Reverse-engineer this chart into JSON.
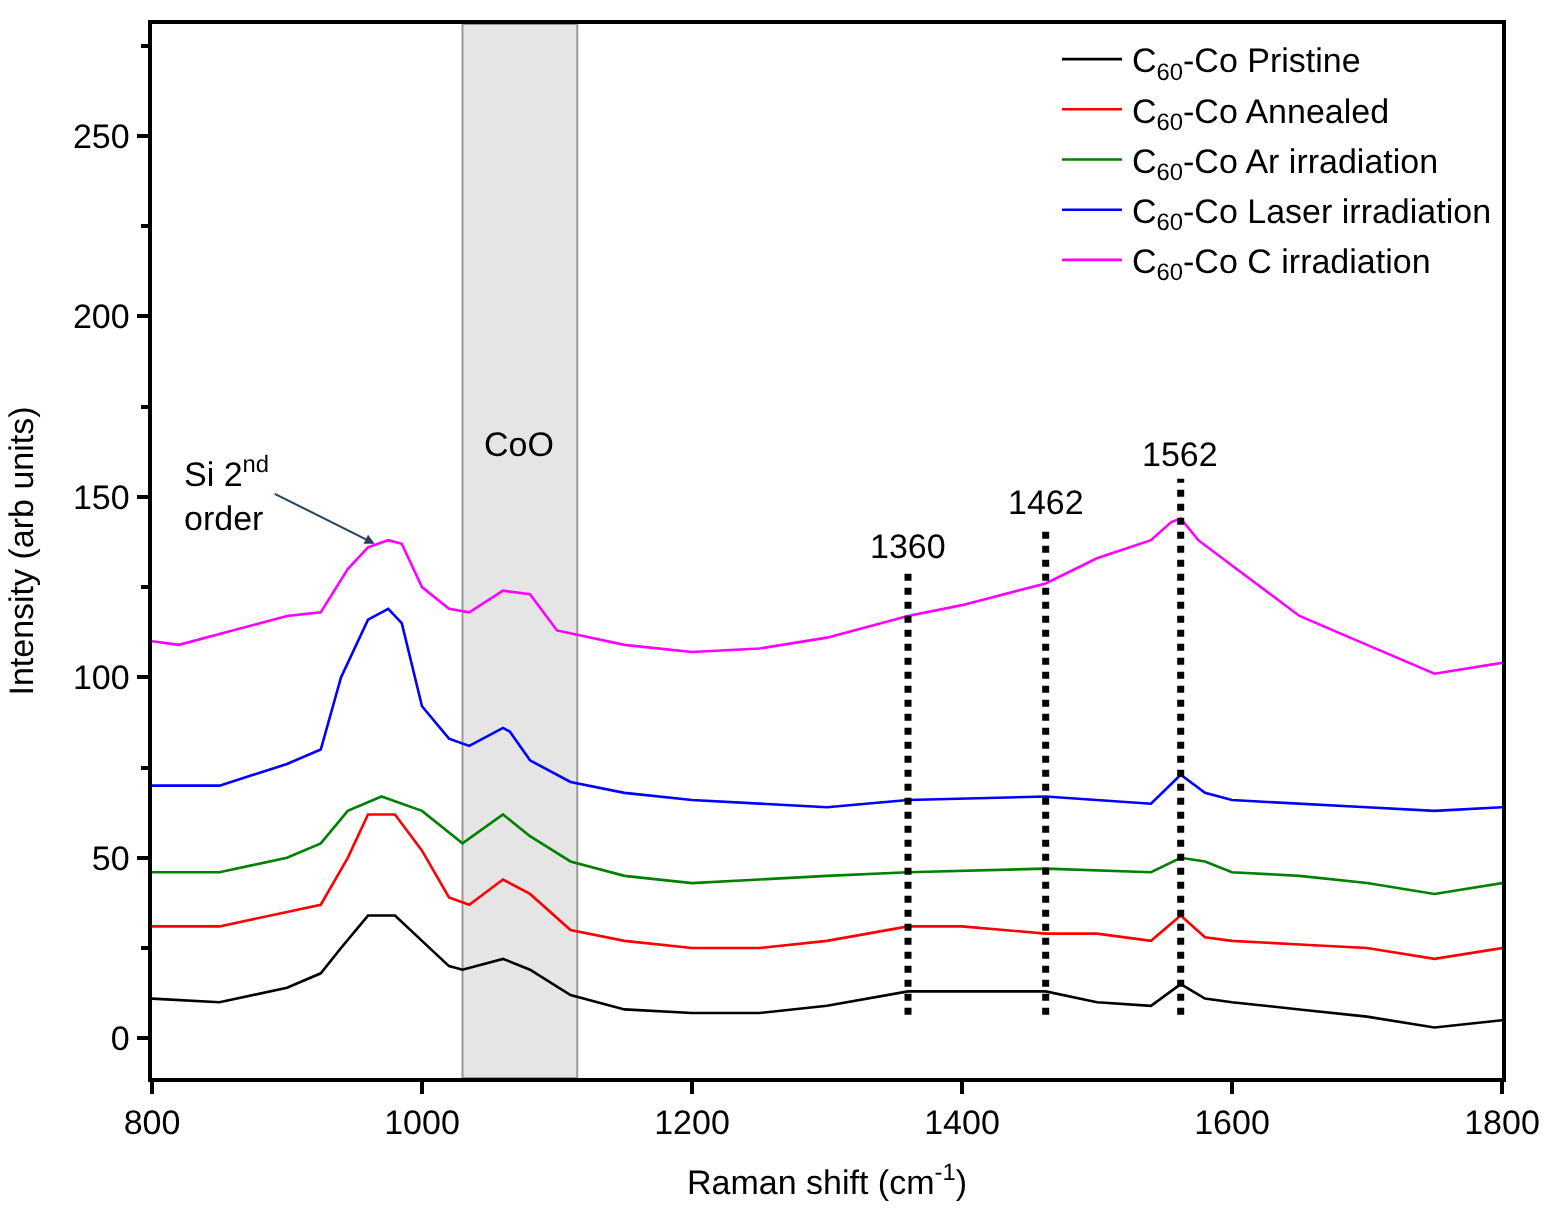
{
  "chart_data": {
    "type": "line",
    "xlabel": "Raman shift (cm$^{-1}$)",
    "ylabel": "Intensity (arb units)",
    "xlim": [
      800,
      1800
    ],
    "xticks": [
      800,
      1000,
      1200,
      1400,
      1600,
      1800
    ],
    "ylim": [
      -11,
      281
    ],
    "yticks": [
      0,
      50,
      100,
      150,
      200,
      250
    ],
    "grid": false,
    "legend": "top right",
    "marker": "none",
    "line_style": "solid",
    "series": [
      {
        "name": "C$_{60}$-Co Pristine",
        "color": "#000000",
        "x": [
          800,
          850,
          900,
          925,
          940,
          960,
          980,
          1000,
          1020,
          1030,
          1060,
          1080,
          1110,
          1150,
          1200,
          1250,
          1300,
          1360,
          1400,
          1462,
          1500,
          1540,
          1562,
          1580,
          1600,
          1650,
          1700,
          1750,
          1800
        ],
        "values": [
          11,
          10,
          14,
          18,
          25,
          34,
          34,
          27,
          20,
          19,
          22,
          19,
          12,
          8,
          7,
          7,
          9,
          13,
          13,
          13,
          10,
          9,
          15,
          11,
          10,
          8,
          6,
          3,
          5
        ]
      },
      {
        "name": "C$_{60}$-Co Annealed",
        "color": "#ff0000",
        "x": [
          800,
          850,
          900,
          925,
          945,
          960,
          980,
          1000,
          1020,
          1035,
          1060,
          1080,
          1110,
          1150,
          1200,
          1250,
          1300,
          1360,
          1400,
          1462,
          1500,
          1540,
          1562,
          1580,
          1600,
          1650,
          1700,
          1750,
          1800
        ],
        "values": [
          31,
          31,
          35,
          37,
          50,
          62,
          62,
          52,
          39,
          37,
          44,
          40,
          30,
          27,
          25,
          25,
          27,
          31,
          31,
          29,
          29,
          27,
          34,
          28,
          27,
          26,
          25,
          22,
          25
        ]
      },
      {
        "name": "C$_{60}$-Co Ar irradiation",
        "color": "#008000",
        "x": [
          800,
          850,
          900,
          925,
          945,
          970,
          1000,
          1030,
          1060,
          1080,
          1110,
          1150,
          1200,
          1300,
          1360,
          1462,
          1540,
          1562,
          1580,
          1600,
          1650,
          1700,
          1750,
          1800
        ],
        "values": [
          46,
          46,
          50,
          54,
          63,
          67,
          63,
          54,
          62,
          56,
          49,
          45,
          43,
          45,
          46,
          47,
          46,
          50,
          49,
          46,
          45,
          43,
          40,
          43
        ]
      },
      {
        "name": "C$_{60}$-Co Laser irradiation",
        "color": "#0000ff",
        "x": [
          800,
          850,
          900,
          925,
          940,
          960,
          975,
          985,
          1000,
          1020,
          1035,
          1060,
          1065,
          1080,
          1110,
          1150,
          1200,
          1300,
          1360,
          1462,
          1540,
          1562,
          1580,
          1600,
          1700,
          1750,
          1800
        ],
        "values": [
          70,
          70,
          76,
          80,
          100,
          116,
          119,
          115,
          92,
          83,
          81,
          86,
          85,
          77,
          71,
          68,
          66,
          64,
          66,
          67,
          65,
          73,
          68,
          66,
          64,
          63,
          64
        ]
      },
      {
        "name": "C$_{60}$-Co C irradiation",
        "color": "#ff00ff",
        "x": [
          800,
          820,
          850,
          900,
          925,
          945,
          960,
          975,
          985,
          1000,
          1020,
          1035,
          1060,
          1080,
          1100,
          1150,
          1200,
          1250,
          1300,
          1360,
          1400,
          1462,
          1500,
          1540,
          1555,
          1562,
          1575,
          1600,
          1650,
          1700,
          1750,
          1800
        ],
        "values": [
          110,
          109,
          112,
          117,
          118,
          130,
          136,
          138,
          137,
          125,
          119,
          118,
          124,
          123,
          113,
          109,
          107,
          108,
          111,
          117,
          120,
          126,
          133,
          138,
          143,
          144,
          138,
          131,
          117,
          109,
          101,
          104
        ]
      }
    ],
    "bands": [
      {
        "axis": "x",
        "from": 1030,
        "to": 1115,
        "label": "CoO",
        "color": "#e5e5e5"
      }
    ],
    "ref_lines": [
      {
        "axis": "x",
        "value": 1360,
        "line_style": "dotted",
        "color": "#000000"
      },
      {
        "axis": "x",
        "value": 1462,
        "line_style": "dotted",
        "color": "#000000"
      },
      {
        "axis": "x",
        "value": 1562,
        "line_style": "dotted",
        "color": "#000000"
      }
    ],
    "annotations": [
      {
        "text": "1360",
        "x": 1360,
        "y": 130
      },
      {
        "text": "1462",
        "x": 1462,
        "y": 142
      },
      {
        "text": "1562",
        "x": 1562,
        "y": 155
      },
      {
        "text": "Si 2$^{nd}$\norder",
        "x": 965,
        "y": 137
      }
    ]
  }
}
